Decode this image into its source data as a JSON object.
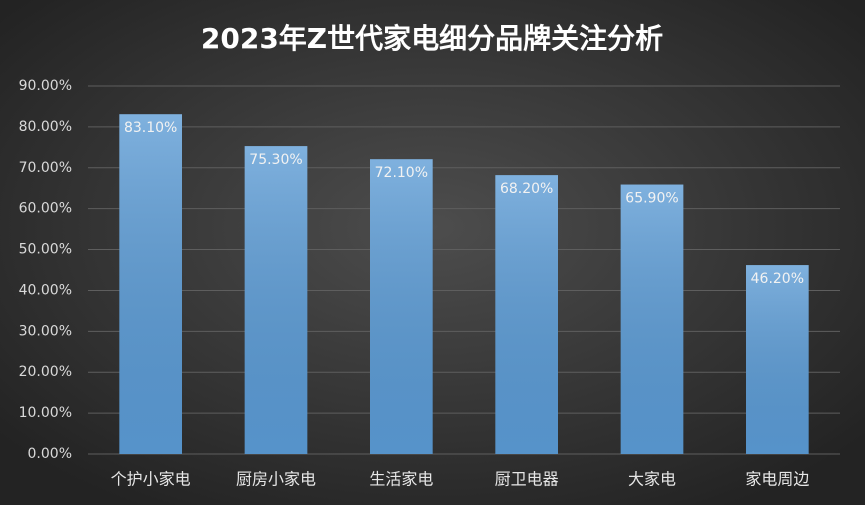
{
  "chart_data": {
    "type": "bar",
    "title": "2023年Z世代家电细分品牌关注分析",
    "categories": [
      "个护小家电",
      "厨房小家电",
      "生活家电",
      "厨卫电器",
      "大家电",
      "家电周边"
    ],
    "values": [
      83.1,
      75.3,
      72.1,
      68.2,
      65.9,
      46.2
    ],
    "value_labels": [
      "83.10%",
      "75.30%",
      "72.10%",
      "68.20%",
      "65.90%",
      "46.20%"
    ],
    "color": "#5b9bd5",
    "ylim": [
      0,
      90
    ],
    "yticks": [
      {
        "value": 0,
        "label": "0.00%"
      },
      {
        "value": 10,
        "label": "10.00%"
      },
      {
        "value": 20,
        "label": "20.00%"
      },
      {
        "value": 30,
        "label": "30.00%"
      },
      {
        "value": 40,
        "label": "40.00%"
      },
      {
        "value": 50,
        "label": "50.00%"
      },
      {
        "value": 60,
        "label": "60.00%"
      },
      {
        "value": 70,
        "label": "70.00%"
      },
      {
        "value": 80,
        "label": "80.00%"
      },
      {
        "value": 90,
        "label": "90.00%"
      }
    ],
    "grid": true
  }
}
